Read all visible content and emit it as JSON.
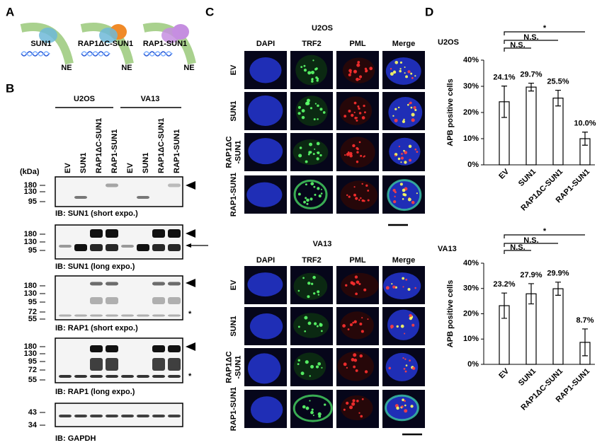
{
  "panel_labels": [
    "A",
    "B",
    "C",
    "D"
  ],
  "panel_a": {
    "constructs": [
      {
        "label": "SUN1",
        "ne": "NE"
      },
      {
        "label": "RAP1ΔC-SUN1",
        "ne": "NE"
      },
      {
        "label": "RAP1-SUN1",
        "ne": "NE"
      }
    ]
  },
  "panel_b": {
    "cell_lines": [
      {
        "name": "U2OS",
        "lanes": [
          "EV",
          "SUN1",
          "RAP1ΔC-SUN1",
          "RAP1-SUN1"
        ]
      },
      {
        "name": "VA13",
        "lanes": [
          "EV",
          "SUN1",
          "RAP1ΔC-SUN1",
          "RAP1-SUN1"
        ]
      }
    ],
    "kda_label": "(kDa)",
    "blots": [
      {
        "caption": "IB: SUN1 (short expo.)",
        "markers": [
          180,
          130,
          95
        ]
      },
      {
        "caption": "IB: SUN1 (long expo.)",
        "markers": [
          180,
          130,
          95
        ]
      },
      {
        "caption": "IB: RAP1 (short expo.)",
        "markers": [
          180,
          130,
          95,
          72,
          55
        ],
        "asterisk": "*"
      },
      {
        "caption": "IB: RAP1 (long expo.)",
        "markers": [
          180,
          130,
          95,
          72,
          55
        ],
        "asterisk": "*"
      },
      {
        "caption": "IB: GAPDH",
        "markers": [
          43,
          34
        ]
      }
    ]
  },
  "panel_c": {
    "columns": [
      "DAPI",
      "TRF2",
      "PML",
      "Merge"
    ],
    "groups": [
      {
        "title": "U2OS",
        "rows": [
          [
            "EV"
          ],
          [
            "SUN1"
          ],
          [
            "RAP1ΔC",
            "-SUN1"
          ],
          [
            "RAP1-SUN1"
          ]
        ]
      },
      {
        "title": "VA13",
        "rows": [
          [
            "EV"
          ],
          [
            "SUN1"
          ],
          [
            "RAP1ΔC",
            "-SUN1"
          ],
          [
            "RAP1-SUN1"
          ]
        ]
      }
    ]
  },
  "chart_data": [
    {
      "type": "bar",
      "title": "U2OS",
      "y_label": "APB positive cells",
      "categories": [
        "EV",
        "SUN1",
        "RAP1ΔC-SUN1",
        "RAP1-SUN1"
      ],
      "values": [
        24.1,
        29.7,
        25.5,
        10.0
      ],
      "value_labels": [
        "24.1%",
        "29.7%",
        "25.5%",
        "10.0%"
      ],
      "errors": [
        6,
        1.5,
        3,
        2.5
      ],
      "color": "#ffffff",
      "ylim": [
        0,
        40
      ],
      "yticks": [
        {
          "value": 0,
          "label": "0%"
        },
        {
          "value": 10,
          "label": "10%"
        },
        {
          "value": 20,
          "label": "20%"
        },
        {
          "value": 30,
          "label": "30%"
        },
        {
          "value": 40,
          "label": "40%"
        }
      ],
      "significance": [
        "N.S.",
        "N.S.",
        "*"
      ]
    },
    {
      "type": "bar",
      "title": "VA13",
      "y_label": "APB positive cells",
      "categories": [
        "EV",
        "SUN1",
        "RAP1ΔC-SUN1",
        "RAP1-SUN1"
      ],
      "values": [
        23.2,
        27.9,
        29.9,
        8.7
      ],
      "value_labels": [
        "23.2%",
        "27.9%",
        "29.9%",
        "8.7%"
      ],
      "errors": [
        5,
        4,
        2.6,
        5.3
      ],
      "color": "#ffffff",
      "ylim": [
        0,
        40
      ],
      "yticks": [
        {
          "value": 0,
          "label": "0%"
        },
        {
          "value": 10,
          "label": "10%"
        },
        {
          "value": 20,
          "label": "20%"
        },
        {
          "value": 30,
          "label": "30%"
        },
        {
          "value": 40,
          "label": "40%"
        }
      ],
      "significance": [
        "N.S.",
        "N.S.",
        "*"
      ]
    }
  ]
}
